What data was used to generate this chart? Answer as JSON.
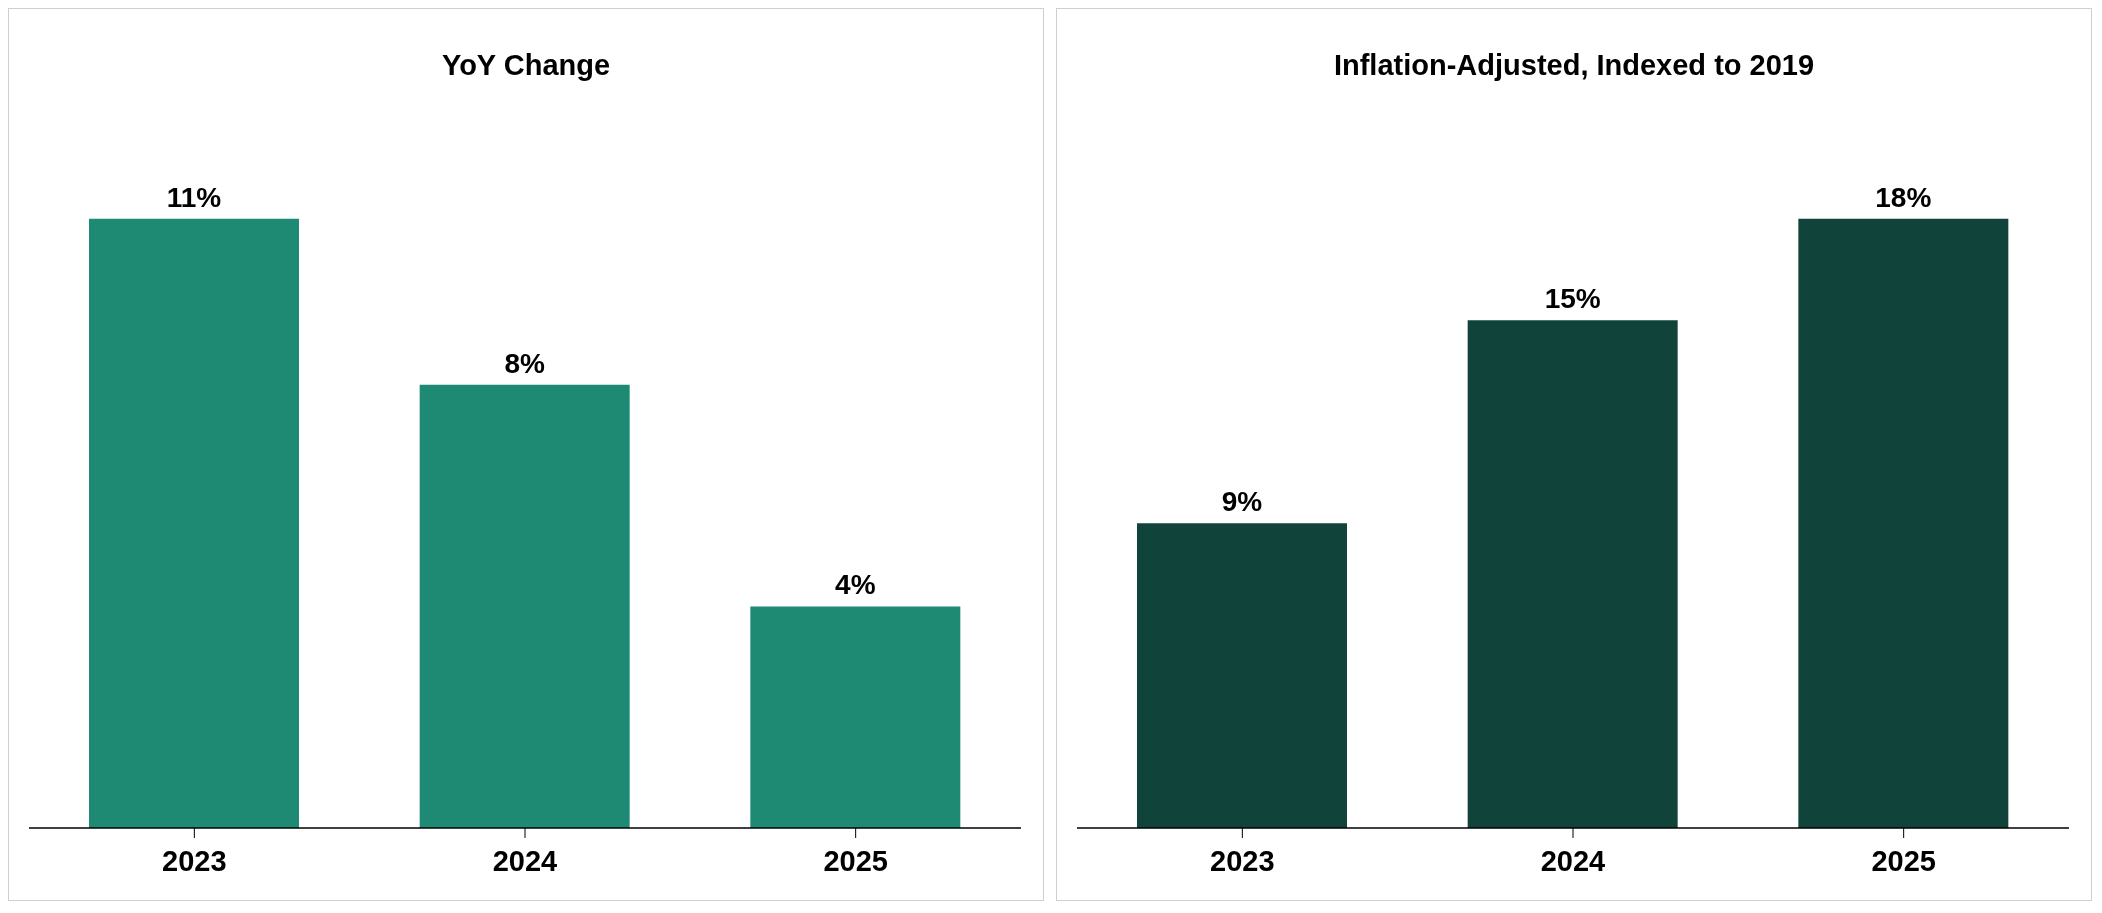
{
  "chart_data": [
    {
      "type": "bar",
      "title": "YoY Change",
      "categories": [
        "2023",
        "2024",
        "2025"
      ],
      "values": [
        11,
        8,
        4
      ],
      "value_labels": [
        "11%",
        "8%",
        "4%"
      ],
      "color": "#1e8a74"
    },
    {
      "type": "bar",
      "title": "Inflation-Adjusted, Indexed to 2019",
      "categories": [
        "2023",
        "2024",
        "2025"
      ],
      "values": [
        9,
        15,
        18
      ],
      "value_labels": [
        "9%",
        "15%",
        "18%"
      ],
      "color": "#10443a"
    }
  ]
}
